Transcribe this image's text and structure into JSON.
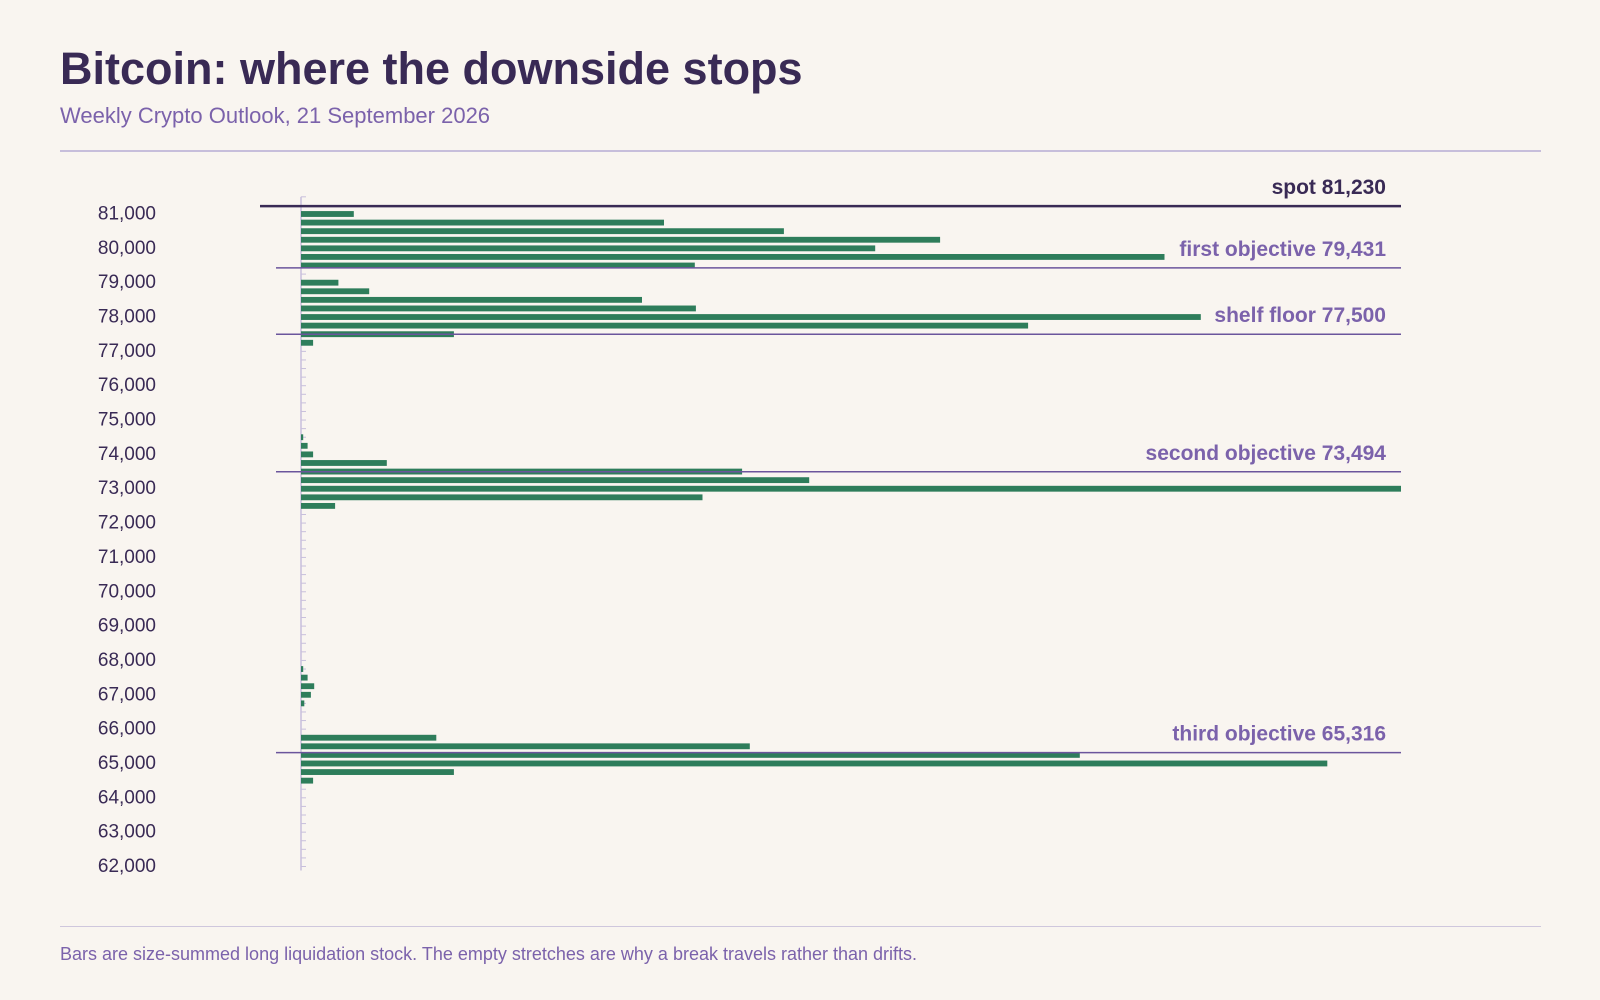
{
  "header": {
    "title": "Bitcoin: where the downside stops",
    "subtitle": "Weekly Crypto Outlook, 21 September 2026"
  },
  "footer": {
    "note": "Bars are size-summed long liquidation stock. The empty stretches are why a break travels rather than drifts."
  },
  "colors": {
    "background": "#f9f5f0",
    "bar": "#2e7d5b",
    "spot_line": "#392a55",
    "level_line": "#6b559c",
    "level_label": "#7b62ab",
    "axis_text": "#392a55",
    "axis_line": "#c8bfdc"
  },
  "chart_data": {
    "type": "bar",
    "orientation": "horizontal",
    "ylabel": "",
    "xlabel": "",
    "ylim": [
      62000,
      81500
    ],
    "xlim": [
      0,
      1
    ],
    "grid": false,
    "legend": "none",
    "y_ticks": [
      81000,
      80000,
      79000,
      78000,
      77000,
      76000,
      75000,
      74000,
      73000,
      72000,
      71000,
      70000,
      69000,
      68000,
      67000,
      66000,
      65000,
      64000,
      63000,
      62000
    ],
    "y_tick_labels": [
      "81,000",
      "80,000",
      "79,000",
      "78,000",
      "77,000",
      "76,000",
      "75,000",
      "74,000",
      "73,000",
      "72,000",
      "71,000",
      "70,000",
      "69,000",
      "68,000",
      "67,000",
      "66,000",
      "65,000",
      "64,000",
      "63,000",
      "62,000"
    ],
    "bin_width": 250,
    "bins": [
      {
        "price": 81000,
        "value": 0.048
      },
      {
        "price": 80750,
        "value": 0.33
      },
      {
        "price": 80500,
        "value": 0.439
      },
      {
        "price": 80250,
        "value": 0.581
      },
      {
        "price": 80000,
        "value": 0.522
      },
      {
        "price": 79750,
        "value": 0.785
      },
      {
        "price": 79500,
        "value": 0.358
      },
      {
        "price": 79000,
        "value": 0.034
      },
      {
        "price": 78750,
        "value": 0.062
      },
      {
        "price": 78500,
        "value": 0.31
      },
      {
        "price": 78250,
        "value": 0.359
      },
      {
        "price": 78000,
        "value": 0.818
      },
      {
        "price": 77750,
        "value": 0.661
      },
      {
        "price": 77500,
        "value": 0.139
      },
      {
        "price": 77250,
        "value": 0.011
      },
      {
        "price": 74500,
        "value": 0.002
      },
      {
        "price": 74250,
        "value": 0.006
      },
      {
        "price": 74000,
        "value": 0.011
      },
      {
        "price": 73750,
        "value": 0.078
      },
      {
        "price": 73500,
        "value": 0.401
      },
      {
        "price": 73250,
        "value": 0.462
      },
      {
        "price": 73000,
        "value": 1.0
      },
      {
        "price": 72750,
        "value": 0.365
      },
      {
        "price": 72500,
        "value": 0.031
      },
      {
        "price": 67750,
        "value": 0.002
      },
      {
        "price": 67500,
        "value": 0.006
      },
      {
        "price": 67250,
        "value": 0.012
      },
      {
        "price": 67000,
        "value": 0.009
      },
      {
        "price": 66750,
        "value": 0.003
      },
      {
        "price": 65750,
        "value": 0.123
      },
      {
        "price": 65500,
        "value": 0.408
      },
      {
        "price": 65250,
        "value": 0.708
      },
      {
        "price": 65000,
        "value": 0.933
      },
      {
        "price": 64750,
        "value": 0.139
      },
      {
        "price": 64500,
        "value": 0.011
      }
    ],
    "reference_lines": [
      {
        "kind": "spot",
        "label": "spot 81,230",
        "price": 81230
      },
      {
        "kind": "level",
        "label": "first objective 79,431",
        "price": 79431
      },
      {
        "kind": "level",
        "label": "shelf floor 77,500",
        "price": 77500
      },
      {
        "kind": "level",
        "label": "second objective 73,494",
        "price": 73494
      },
      {
        "kind": "level",
        "label": "third objective 65,316",
        "price": 65316
      }
    ]
  }
}
